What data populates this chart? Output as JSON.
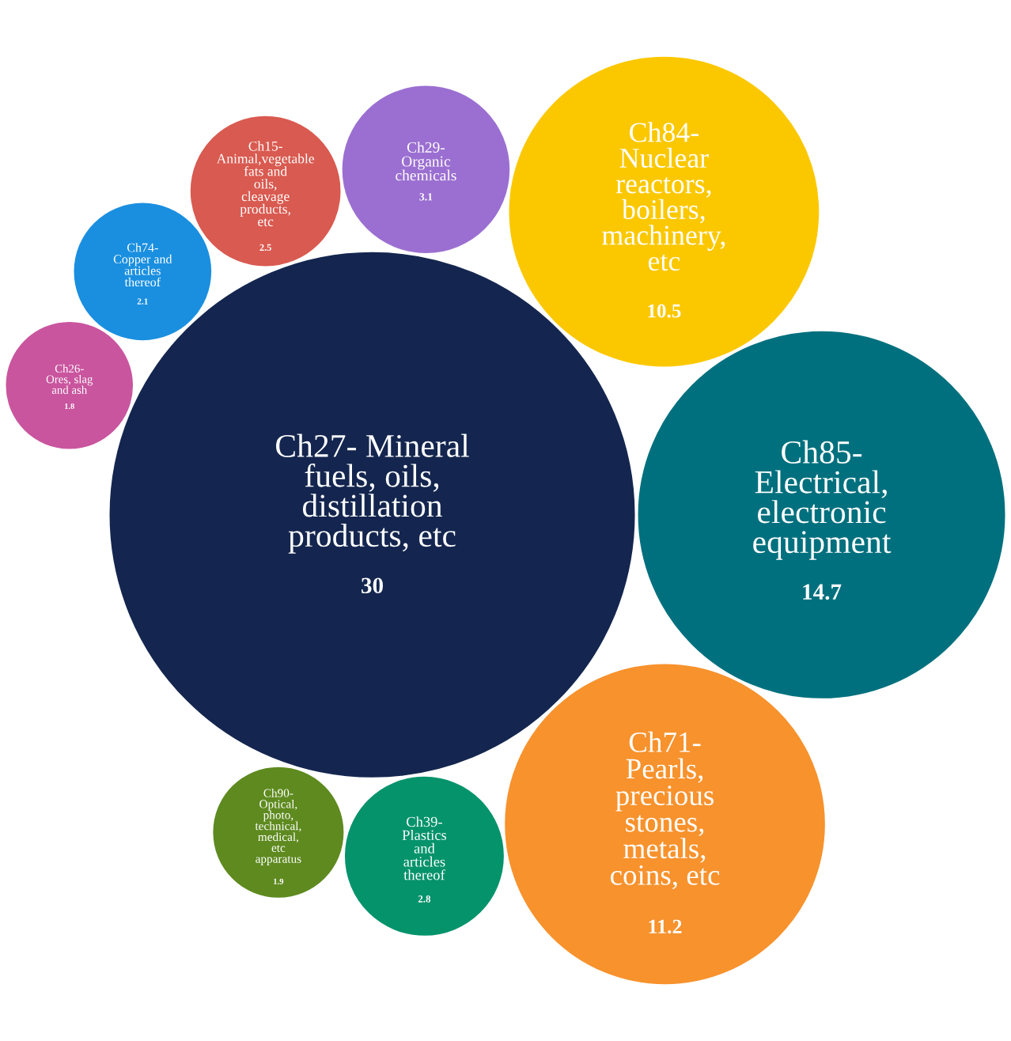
{
  "chart_data": {
    "type": "other",
    "data_labels": true,
    "categories": [
      "Ch27- Mineral fuels, oils, distillation products, etc",
      "Ch85- Electrical, electronic equipment",
      "Ch71- Pearls, precious stones, metals, coins, etc",
      "Ch84- Nuclear reactors, boilers, machinery, etc",
      "Ch29- Organic chemicals",
      "Ch39- Plastics and articles thereof",
      "Ch15- Animal,vegetable fats and oils, cleavage products, etc",
      "Ch74- Copper and articles thereof",
      "Ch90- Optical, photo, technical, medical, etc apparatus",
      "Ch26- Ores, slag and ash"
    ],
    "values": [
      30,
      14.7,
      11.2,
      10.5,
      3.1,
      2.8,
      2.5,
      2.1,
      1.9,
      1.8
    ],
    "colors": [
      "#14264f",
      "#00707e",
      "#f7922d",
      "#fbc800",
      "#9b6fd1",
      "#05936b",
      "#d95a50",
      "#1a8fe0",
      "#5e8a1f",
      "#c9559e"
    ]
  }
}
